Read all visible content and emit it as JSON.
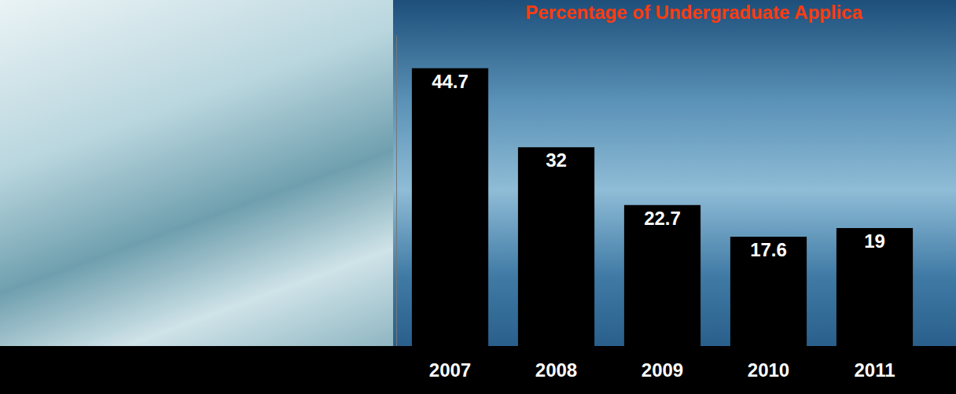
{
  "chart_data": {
    "type": "bar",
    "title": "Percentage of Undergraduate Applica",
    "categories": [
      "2007",
      "2008",
      "2009",
      "2010",
      "2011"
    ],
    "values": [
      44.7,
      32,
      22.7,
      17.6,
      19
    ],
    "color": "#000000",
    "ylim": [
      0,
      50
    ],
    "data_labels": true,
    "tick_labels": "x",
    "grid": false
  }
}
